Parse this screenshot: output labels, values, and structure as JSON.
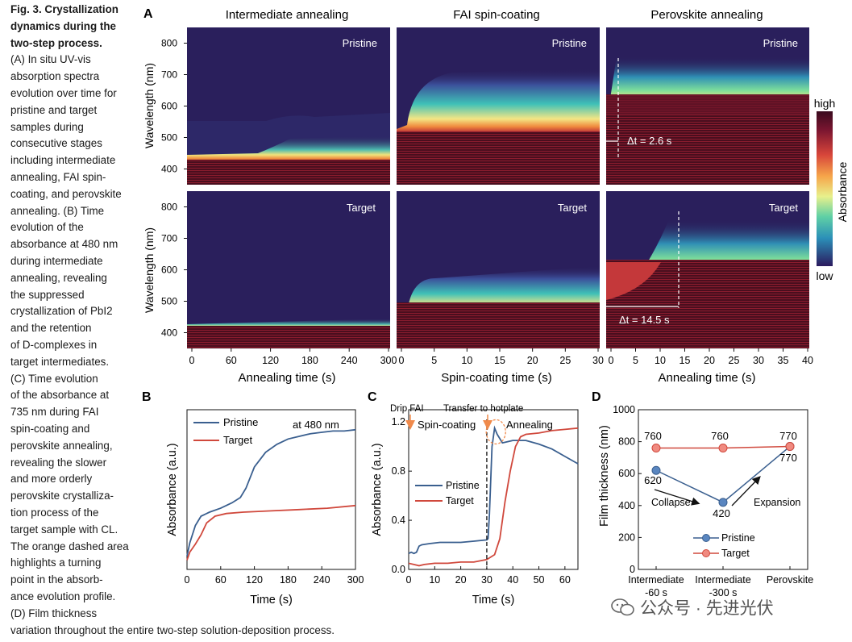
{
  "caption": {
    "fig_label": "Fig. 3. Crystallization dynamics during the two-step process.",
    "lines": [
      "(A) In situ UV-vis",
      "absorption spectra",
      "evolution over time for",
      "pristine and target",
      "samples during",
      "consecutive stages",
      "including intermediate",
      "annealing, FAI spin-",
      "coating, and perovskite",
      "annealing. (B) Time",
      "evolution of the",
      "absorbance at 480 nm",
      "during intermediate",
      "annealing, revealing",
      "the suppressed",
      "crystallization of PbI2",
      "and the retention",
      "of D-complexes in",
      "target intermediates.",
      "(C) Time evolution",
      "of the absorbance at",
      "735 nm during FAI",
      "spin-coating and",
      "perovskite annealing,",
      "revealing the slower",
      "and more orderly",
      "perovskite crystalliza-",
      "tion process of the",
      "target sample with CL.",
      "The orange dashed area",
      "highlights a turning",
      "point in the absorb-",
      "ance evolution profile.",
      "(D) Film thickness"
    ],
    "last_line": "variation throughout the entire two-step solution-deposition process."
  },
  "watermark": "公众号 · 先进光伏",
  "colors": {
    "pristine": "#3a5f8f",
    "target": "#d0483c",
    "accent_orange": "#f08a4b"
  },
  "panelA": {
    "label": "A",
    "columns": [
      "Intermediate annealing",
      "FAI spin-coating",
      "Perovskite annealing"
    ],
    "row_tags": [
      "Pristine",
      "Target"
    ],
    "ylabel": "Wavelength (nm)",
    "yticks": [
      "800",
      "700",
      "600",
      "500",
      "400"
    ],
    "xlabels": [
      "Annealing time (s)",
      "Spin-coating time (s)",
      "Annealing time (s)"
    ],
    "xticks": [
      [
        "0",
        "60",
        "120",
        "180",
        "240",
        "300"
      ],
      [
        "0",
        "5",
        "10",
        "15",
        "20",
        "25",
        "30"
      ],
      [
        "0",
        "5",
        "10",
        "15",
        "20",
        "25",
        "30",
        "35",
        "40"
      ]
    ],
    "annotations": {
      "pristine_dt": "Δt = 2.6 s",
      "target_dt": "Δt = 14.5 s"
    },
    "colorbar": {
      "high": "high",
      "low": "low",
      "label": "Absorbance"
    }
  },
  "chart_data": [
    {
      "panel": "B",
      "type": "line",
      "annotation": "at 480 nm",
      "xlabel": "Time (s)",
      "ylabel": "Absorbance (a.u.)",
      "xlim": [
        0,
        300
      ],
      "xticks": [
        "0",
        "60",
        "120",
        "180",
        "240",
        "300"
      ],
      "series": [
        {
          "name": "Pristine",
          "x": [
            0,
            5,
            15,
            25,
            40,
            60,
            80,
            95,
            105,
            120,
            140,
            160,
            180,
            200,
            220,
            240,
            260,
            280,
            300
          ],
          "y": [
            0.15,
            0.25,
            0.38,
            0.45,
            0.48,
            0.51,
            0.55,
            0.59,
            0.66,
            0.82,
            0.93,
            0.99,
            1.03,
            1.05,
            1.07,
            1.08,
            1.09,
            1.09,
            1.1
          ]
        },
        {
          "name": "Target",
          "x": [
            0,
            5,
            15,
            25,
            35,
            50,
            70,
            100,
            150,
            200,
            250,
            300
          ],
          "y": [
            0.12,
            0.18,
            0.24,
            0.31,
            0.4,
            0.45,
            0.47,
            0.48,
            0.49,
            0.5,
            0.51,
            0.53
          ]
        }
      ]
    },
    {
      "panel": "C",
      "type": "line",
      "xlabel": "Time (s)",
      "ylabel": "Absorbance (a.u.)",
      "xlim": [
        0,
        65
      ],
      "ylim": [
        0,
        1.2
      ],
      "xticks": [
        "0",
        "10",
        "20",
        "30",
        "40",
        "50",
        "60"
      ],
      "yticks": [
        "0.0",
        "0.4",
        "0.8",
        "1.2"
      ],
      "labels": {
        "drip": "Drip FAI",
        "transfer": "Transfer to hotplate",
        "spin": "Spin-coating",
        "anneal": "Annealing"
      },
      "series": [
        {
          "name": "Pristine",
          "x": [
            0,
            1,
            2,
            3,
            4,
            5,
            8,
            12,
            20,
            25,
            30,
            30.5,
            31,
            32,
            33,
            34,
            36,
            38,
            40,
            45,
            50,
            55,
            60,
            65
          ],
          "y": [
            0.13,
            0.14,
            0.13,
            0.14,
            0.19,
            0.2,
            0.21,
            0.22,
            0.22,
            0.23,
            0.24,
            0.25,
            0.45,
            1.0,
            1.15,
            1.1,
            1.03,
            1.04,
            1.05,
            1.05,
            1.02,
            0.98,
            0.92,
            0.86
          ]
        },
        {
          "name": "Target",
          "x": [
            0,
            2,
            4,
            6,
            10,
            15,
            20,
            25,
            30,
            33,
            35,
            37,
            39,
            41,
            43,
            45,
            50,
            55,
            60,
            65
          ],
          "y": [
            0.05,
            0.04,
            0.03,
            0.04,
            0.05,
            0.05,
            0.06,
            0.06,
            0.08,
            0.12,
            0.25,
            0.55,
            0.8,
            1.0,
            1.08,
            1.1,
            1.11,
            1.13,
            1.14,
            1.15
          ]
        }
      ]
    },
    {
      "panel": "D",
      "type": "line",
      "ylabel": "Film thickness (nm)",
      "ylim": [
        0,
        1000
      ],
      "yticks": [
        "0",
        "200",
        "400",
        "600",
        "800",
        "1000"
      ],
      "categories": [
        "Intermediate\n-60 s",
        "Intermediate\n-300 s",
        "Perovskite"
      ],
      "category_lines": [
        [
          "Intermediate",
          "-60 s"
        ],
        [
          "Intermediate",
          "-300 s"
        ],
        [
          "Perovskite"
        ]
      ],
      "arrows": {
        "collapse": "Collapse",
        "expansion": "Expansion"
      },
      "series": [
        {
          "name": "Pristine",
          "values": [
            620,
            420,
            770
          ],
          "labels": [
            "620",
            "420",
            "770"
          ]
        },
        {
          "name": "Target",
          "values": [
            760,
            760,
            770
          ],
          "labels": [
            "760",
            "760",
            "770"
          ]
        }
      ]
    }
  ]
}
